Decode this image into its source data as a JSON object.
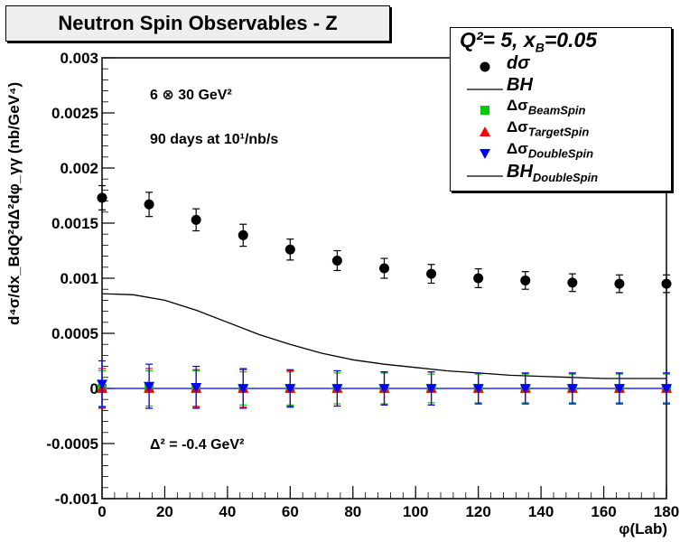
{
  "title": "Neutron Spin Observables - Z",
  "legend": {
    "header": "Q²=  5, x",
    "header_sub": "B",
    "header_tail": "=0.05",
    "items": [
      {
        "label": "dσ",
        "sub": "",
        "symbol": "circle",
        "color": "#000000"
      },
      {
        "label": "BH",
        "sub": "",
        "symbol": "line",
        "color": "#000000"
      },
      {
        "label": "Δσ",
        "sub": "BeamSpin",
        "symbol": "square",
        "color": "#00cc00"
      },
      {
        "label": "Δσ",
        "sub": "TargetSpin",
        "symbol": "triangle-up",
        "color": "#ff0000"
      },
      {
        "label": "Δσ",
        "sub": "DoubleSpin",
        "symbol": "triangle-down",
        "color": "#0000ff"
      },
      {
        "label": "BH",
        "sub": "DoubleSpin",
        "symbol": "line",
        "color": "#000000"
      }
    ]
  },
  "annotations": {
    "energy": "6 ⊗  30 GeV²",
    "runtime": "90 days at 10¹/nb/s",
    "delta": "Δ² = -0.4 GeV²"
  },
  "axes": {
    "ylabel": "d⁴σ/dx_BdQ²dΔ²dφ_γγ  (nb/GeV⁴)",
    "xlabel": "φ(Lab)"
  },
  "chart_data": {
    "type": "scatter",
    "title": "Neutron Spin Observables - Z",
    "xlabel": "φ(Lab)",
    "ylabel": "d⁴σ/dx_BdQ²dΔ²dφ_γγ  (nb/GeV⁴)",
    "xlim": [
      0,
      180
    ],
    "ylim": [
      -0.001,
      0.003
    ],
    "x_ticks": [
      "0",
      "20",
      "40",
      "60",
      "80",
      "100",
      "120",
      "140",
      "160",
      "180"
    ],
    "y_ticks": [
      "-0.001",
      "-0.0005",
      "0",
      "0.0005",
      "0.001",
      "0.0015",
      "0.002",
      "0.0025",
      "0.003"
    ],
    "y_tick_values": [
      -0.001,
      -0.0005,
      0,
      0.0005,
      0.001,
      0.0015,
      0.002,
      0.0025,
      0.003
    ],
    "x_tick_values": [
      0,
      20,
      40,
      60,
      80,
      100,
      120,
      140,
      160,
      180
    ],
    "legend_position": "top-right",
    "grid": false,
    "x": [
      0,
      15,
      30,
      45,
      60,
      75,
      90,
      105,
      120,
      135,
      150,
      165,
      180
    ],
    "series": [
      {
        "name": "dσ",
        "color": "#000000",
        "marker": "circle",
        "values": [
          0.00173,
          0.00167,
          0.00153,
          0.00139,
          0.00126,
          0.00116,
          0.00109,
          0.00104,
          0.001,
          0.00098,
          0.00096,
          0.00095,
          0.00095
        ],
        "errors": [
          0.00011,
          0.00011,
          0.0001,
          0.0001,
          9.5e-05,
          9e-05,
          9e-05,
          8.5e-05,
          8.5e-05,
          8e-05,
          8e-05,
          8e-05,
          8e-05
        ]
      },
      {
        "name": "Δσ BeamSpin",
        "color": "#00cc00",
        "marker": "square",
        "values": [
          0,
          0,
          0,
          0,
          0,
          0,
          0,
          0,
          0,
          0,
          0,
          0,
          0
        ],
        "errors": [
          0.00016,
          0.00016,
          0.00016,
          0.00015,
          0.00015,
          0.00014,
          0.00014,
          0.00013,
          0.00013,
          0.00013,
          0.00013,
          0.00013,
          0.00013
        ]
      },
      {
        "name": "Δσ TargetSpin",
        "color": "#ff0000",
        "marker": "triangle-up",
        "values": [
          0,
          0,
          0,
          0,
          0,
          0,
          0,
          0,
          0,
          0,
          0,
          0,
          0
        ],
        "errors": [
          0.00018,
          0.00018,
          0.00017,
          0.00017,
          0.00016,
          0.00016,
          0.00015,
          0.00015,
          0.00014,
          0.00014,
          0.00014,
          0.00014,
          0.00014
        ]
      },
      {
        "name": "Δσ DoubleSpin",
        "color": "#0000ff",
        "marker": "triangle-down",
        "values": [
          4e-05,
          2e-05,
          1e-05,
          0,
          0,
          0,
          0,
          0,
          0,
          0,
          0,
          0,
          0
        ],
        "errors": [
          0.00021,
          0.0002,
          0.00019,
          0.00018,
          0.00017,
          0.00016,
          0.00015,
          0.00015,
          0.00014,
          0.00014,
          0.00014,
          0.00014,
          0.00014
        ]
      }
    ],
    "curves": [
      {
        "name": "BH",
        "color": "#000000",
        "x": [
          0,
          10,
          20,
          30,
          40,
          50,
          60,
          70,
          80,
          90,
          100,
          110,
          120,
          130,
          140,
          150,
          160,
          170,
          180
        ],
        "values": [
          0.00086,
          0.00085,
          0.0008,
          0.00071,
          0.0006,
          0.00049,
          0.0004,
          0.00032,
          0.00026,
          0.00022,
          0.00019,
          0.00016,
          0.00014,
          0.00012,
          0.00011,
          0.0001,
          9e-05,
          9e-05,
          9e-05
        ]
      },
      {
        "name": "BH DoubleSpin",
        "color": "#0000ff",
        "x": [
          0,
          180
        ],
        "values": [
          0,
          0
        ]
      }
    ]
  }
}
